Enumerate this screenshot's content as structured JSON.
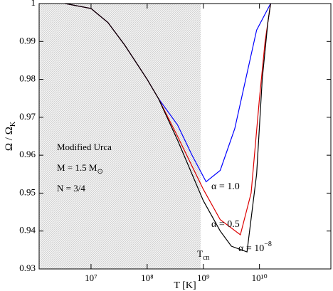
{
  "chart_data": {
    "type": "line",
    "xlabel": "T [K]",
    "ylabel": [
      "Ω / Ω",
      "K"
    ],
    "xscale": "log",
    "xlim": [
      1190000.0,
      187000000000.0
    ],
    "ylim": [
      0.93,
      1
    ],
    "xticks": [
      {
        "value": 10000000.0,
        "label": "10⁷"
      },
      {
        "value": 100000000.0,
        "label": "10⁸"
      },
      {
        "value": 1000000000.0,
        "label": "10⁹"
      },
      {
        "value": 10000000000.0,
        "label": "10¹⁰"
      }
    ],
    "yticks": [
      0.93,
      0.94,
      0.95,
      0.96,
      0.97,
      0.98,
      0.99,
      1
    ],
    "shade_xmax": 900000000.0,
    "shade_label": [
      "T",
      "cn"
    ],
    "annotations": [
      "Modified Urca",
      [
        "M = 1.5 M",
        "⊙"
      ],
      "N = 3/4"
    ],
    "series": [
      {
        "name": "α = 1.0",
        "color": "#0000ff",
        "x": [
          3470000.0,
          10000000.0,
          20000000.0,
          40000000.0,
          100000000.0,
          158000000.0,
          347000000.0,
          630000000.0,
          1120000000.0,
          2000000000.0,
          3630000000.0,
          6300000000.0,
          8900000000.0,
          15800000000.0
        ],
        "values": [
          1,
          0.9987,
          0.995,
          0.989,
          0.98,
          0.975,
          0.968,
          0.96,
          0.953,
          0.956,
          0.967,
          0.983,
          0.993,
          1
        ]
      },
      {
        "name": "α = 0.5",
        "color": "#dd0000",
        "x": [
          3470000.0,
          10000000.0,
          20000000.0,
          40000000.0,
          100000000.0,
          158000000.0,
          347000000.0,
          1000000000.0,
          2000000000.0,
          4570000000.0,
          7100000000.0,
          10000000000.0,
          12600000000.0,
          15800000000.0
        ],
        "values": [
          1,
          0.9987,
          0.995,
          0.989,
          0.98,
          0.975,
          0.965,
          0.951,
          0.943,
          0.939,
          0.95,
          0.975,
          0.99,
          1
        ]
      },
      {
        "name": [
          "α = 10",
          "−8"
        ],
        "color": "#000000",
        "x": [
          3470000.0,
          10000000.0,
          20000000.0,
          40000000.0,
          100000000.0,
          158000000.0,
          347000000.0,
          1000000000.0,
          2000000000.0,
          3160000000.0,
          6000000000.0,
          8900000000.0,
          11200000000.0,
          14100000000.0,
          15800000000.0
        ],
        "values": [
          1,
          0.9987,
          0.995,
          0.989,
          0.98,
          0.975,
          0.964,
          0.948,
          0.94,
          0.936,
          0.9345,
          0.955,
          0.98,
          0.995,
          1
        ]
      }
    ]
  }
}
